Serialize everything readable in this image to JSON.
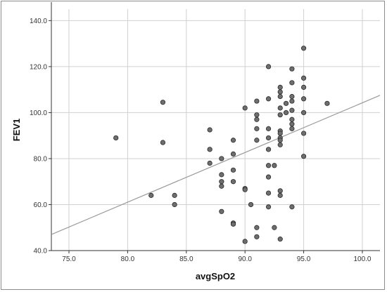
{
  "chart_data": {
    "type": "scatter",
    "title": "",
    "xlabel": "avgSpO2",
    "ylabel": "FEV1",
    "xlim": [
      73.5,
      101.5
    ],
    "ylim": [
      40.0,
      145.0
    ],
    "x_ticks": [
      "75.0",
      "80.0",
      "85.0",
      "90.0",
      "95.0",
      "100.0"
    ],
    "x_tick_values": [
      75,
      80,
      85,
      90,
      95,
      100
    ],
    "y_ticks": [
      "40.0",
      "60.0",
      "80.0",
      "100.0",
      "120.0",
      "140.0"
    ],
    "y_tick_values": [
      40,
      60,
      80,
      100,
      120,
      140
    ],
    "grid": true,
    "fit_line": {
      "x": [
        73.5,
        101.5
      ],
      "y": [
        47.0,
        107.5
      ]
    },
    "points": [
      {
        "x": 79,
        "y": 89
      },
      {
        "x": 82,
        "y": 64
      },
      {
        "x": 83,
        "y": 104.5
      },
      {
        "x": 83,
        "y": 87
      },
      {
        "x": 84,
        "y": 64
      },
      {
        "x": 84,
        "y": 60
      },
      {
        "x": 87,
        "y": 92.5
      },
      {
        "x": 87,
        "y": 84
      },
      {
        "x": 87,
        "y": 78
      },
      {
        "x": 88,
        "y": 80
      },
      {
        "x": 88,
        "y": 73
      },
      {
        "x": 88,
        "y": 70
      },
      {
        "x": 88,
        "y": 68
      },
      {
        "x": 88,
        "y": 57
      },
      {
        "x": 89,
        "y": 88
      },
      {
        "x": 89,
        "y": 82
      },
      {
        "x": 89,
        "y": 75
      },
      {
        "x": 89,
        "y": 70
      },
      {
        "x": 89,
        "y": 52
      },
      {
        "x": 89,
        "y": 51.5
      },
      {
        "x": 90,
        "y": 102
      },
      {
        "x": 90,
        "y": 67
      },
      {
        "x": 90,
        "y": 66.5
      },
      {
        "x": 90,
        "y": 44
      },
      {
        "x": 90.5,
        "y": 60
      },
      {
        "x": 91,
        "y": 105
      },
      {
        "x": 91,
        "y": 99
      },
      {
        "x": 91,
        "y": 97
      },
      {
        "x": 91,
        "y": 93
      },
      {
        "x": 91,
        "y": 88
      },
      {
        "x": 91,
        "y": 50
      },
      {
        "x": 91,
        "y": 46
      },
      {
        "x": 92,
        "y": 120
      },
      {
        "x": 92,
        "y": 106
      },
      {
        "x": 92,
        "y": 93
      },
      {
        "x": 92,
        "y": 89
      },
      {
        "x": 92,
        "y": 84
      },
      {
        "x": 92,
        "y": 77
      },
      {
        "x": 92,
        "y": 72
      },
      {
        "x": 92,
        "y": 65
      },
      {
        "x": 92,
        "y": 59
      },
      {
        "x": 92.5,
        "y": 77
      },
      {
        "x": 92.5,
        "y": 50
      },
      {
        "x": 93,
        "y": 111
      },
      {
        "x": 93,
        "y": 109
      },
      {
        "x": 93,
        "y": 107
      },
      {
        "x": 93,
        "y": 102
      },
      {
        "x": 93,
        "y": 99
      },
      {
        "x": 93,
        "y": 92
      },
      {
        "x": 93,
        "y": 91
      },
      {
        "x": 93,
        "y": 89
      },
      {
        "x": 93,
        "y": 88
      },
      {
        "x": 93,
        "y": 86
      },
      {
        "x": 93,
        "y": 66
      },
      {
        "x": 93,
        "y": 64
      },
      {
        "x": 93,
        "y": 45
      },
      {
        "x": 93.5,
        "y": 104
      },
      {
        "x": 93.5,
        "y": 100
      },
      {
        "x": 94,
        "y": 119
      },
      {
        "x": 94,
        "y": 113
      },
      {
        "x": 94,
        "y": 107
      },
      {
        "x": 94,
        "y": 105
      },
      {
        "x": 94,
        "y": 101
      },
      {
        "x": 94,
        "y": 97
      },
      {
        "x": 94,
        "y": 95
      },
      {
        "x": 94,
        "y": 93
      },
      {
        "x": 94,
        "y": 59
      },
      {
        "x": 95,
        "y": 128
      },
      {
        "x": 95,
        "y": 115
      },
      {
        "x": 95,
        "y": 111
      },
      {
        "x": 95,
        "y": 106
      },
      {
        "x": 95,
        "y": 100
      },
      {
        "x": 95,
        "y": 91
      },
      {
        "x": 95,
        "y": 81
      },
      {
        "x": 97,
        "y": 104
      }
    ]
  }
}
